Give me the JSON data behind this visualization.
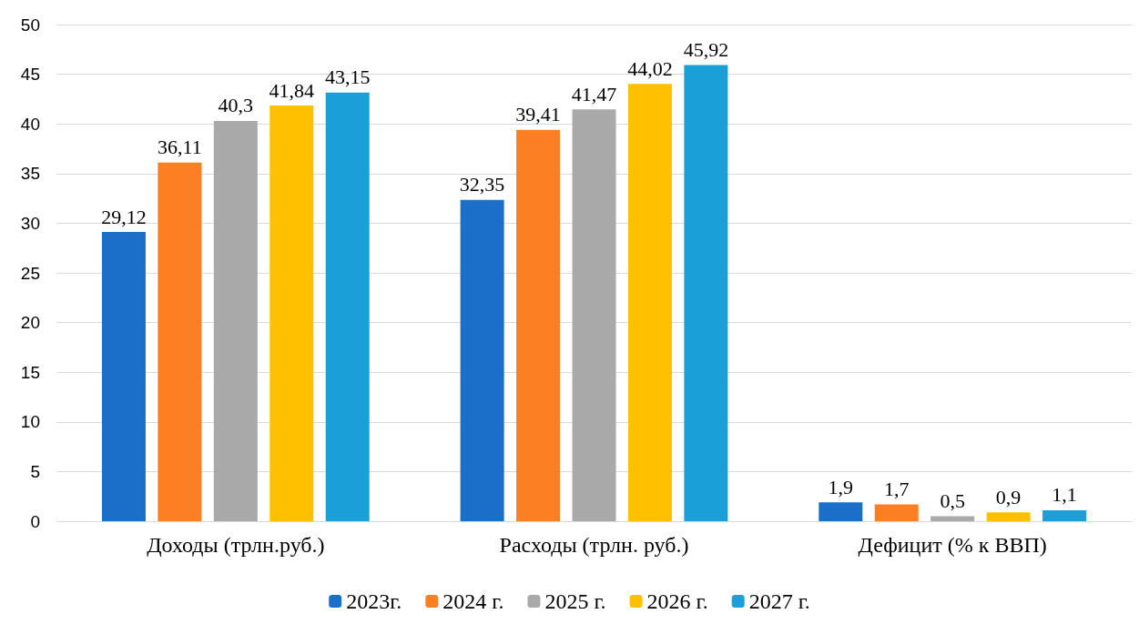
{
  "chart_data": {
    "type": "bar",
    "categories": [
      "Доходы (трлн.руб.)",
      "Расходы (трлн. руб.)",
      "Дефицит (% к ВВП)"
    ],
    "series": [
      {
        "name": "2023г.",
        "color": "#1a6fc8",
        "values": [
          29.12,
          32.35,
          1.9
        ],
        "value_labels": [
          "29,12",
          "32,35",
          "1,9"
        ]
      },
      {
        "name": "2024 г.",
        "color": "#fd7f23",
        "values": [
          36.11,
          39.41,
          1.7
        ],
        "value_labels": [
          "36,11",
          "39,41",
          "1,7"
        ]
      },
      {
        "name": "2025 г.",
        "color": "#a9a9a9",
        "values": [
          40.3,
          41.47,
          0.5
        ],
        "value_labels": [
          "40,3",
          "41,47",
          "0,5"
        ]
      },
      {
        "name": "2026 г.",
        "color": "#ffc000",
        "values": [
          41.84,
          44.02,
          0.9
        ],
        "value_labels": [
          "41,84",
          "44,02",
          "0,9"
        ]
      },
      {
        "name": "2027 г.",
        "color": "#1a9fd8",
        "values": [
          43.15,
          45.92,
          1.1
        ],
        "value_labels": [
          "43,15",
          "45,92",
          "1,1"
        ]
      }
    ],
    "ylim": [
      0,
      50
    ],
    "yticks": [
      0,
      5,
      10,
      15,
      20,
      25,
      30,
      35,
      40,
      45,
      50
    ],
    "grid": "y",
    "legend": "bottom"
  }
}
